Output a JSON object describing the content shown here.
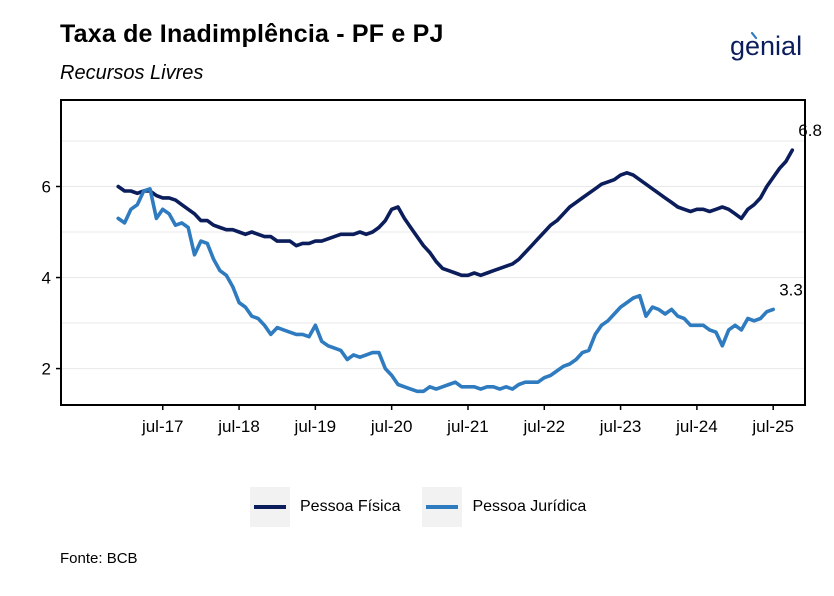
{
  "header": {
    "title": "Taxa de Inadimplência - PF e PJ",
    "subtitle": "Recursos Livres",
    "logo_text": "genial"
  },
  "footer": {
    "source": "Fonte: BCB"
  },
  "colors": {
    "pf": "#0b1e5b",
    "pj": "#2f7bbf",
    "grid": "#e8e8e8",
    "axis": "#000000"
  },
  "chart_data": {
    "type": "line",
    "title": "Taxa de Inadimplência - PF e PJ",
    "subtitle": "Recursos Livres",
    "xlabel": "",
    "ylabel": "",
    "x_ticks": [
      "jul-17",
      "jul-18",
      "jul-19",
      "jul-20",
      "jul-21",
      "jul-22",
      "jul-23",
      "jul-24",
      "jul-25"
    ],
    "y_ticks": [
      2,
      4,
      6
    ],
    "xlim": [
      "2016-03",
      "2025-12"
    ],
    "ylim": [
      1.2,
      7.9
    ],
    "grid": true,
    "legend_position": "bottom",
    "series": [
      {
        "name": "Pessoa Física",
        "end_label": "6.8",
        "points": [
          [
            "2016-12",
            6.0
          ],
          [
            "2017-01",
            5.9
          ],
          [
            "2017-02",
            5.9
          ],
          [
            "2017-03",
            5.85
          ],
          [
            "2017-04",
            5.9
          ],
          [
            "2017-05",
            5.9
          ],
          [
            "2017-06",
            5.8
          ],
          [
            "2017-07",
            5.75
          ],
          [
            "2017-08",
            5.75
          ],
          [
            "2017-09",
            5.7
          ],
          [
            "2017-10",
            5.6
          ],
          [
            "2017-11",
            5.5
          ],
          [
            "2017-12",
            5.4
          ],
          [
            "2018-01",
            5.25
          ],
          [
            "2018-02",
            5.25
          ],
          [
            "2018-03",
            5.15
          ],
          [
            "2018-04",
            5.1
          ],
          [
            "2018-05",
            5.05
          ],
          [
            "2018-06",
            5.05
          ],
          [
            "2018-07",
            5.0
          ],
          [
            "2018-08",
            4.95
          ],
          [
            "2018-09",
            5.0
          ],
          [
            "2018-10",
            4.95
          ],
          [
            "2018-11",
            4.9
          ],
          [
            "2018-12",
            4.9
          ],
          [
            "2019-01",
            4.8
          ],
          [
            "2019-02",
            4.8
          ],
          [
            "2019-03",
            4.8
          ],
          [
            "2019-04",
            4.7
          ],
          [
            "2019-05",
            4.75
          ],
          [
            "2019-06",
            4.75
          ],
          [
            "2019-07",
            4.8
          ],
          [
            "2019-08",
            4.8
          ],
          [
            "2019-09",
            4.85
          ],
          [
            "2019-10",
            4.9
          ],
          [
            "2019-11",
            4.95
          ],
          [
            "2019-12",
            4.95
          ],
          [
            "2020-01",
            4.95
          ],
          [
            "2020-02",
            5.0
          ],
          [
            "2020-03",
            4.95
          ],
          [
            "2020-04",
            5.0
          ],
          [
            "2020-05",
            5.1
          ],
          [
            "2020-06",
            5.25
          ],
          [
            "2020-07",
            5.5
          ],
          [
            "2020-08",
            5.55
          ],
          [
            "2020-09",
            5.3
          ],
          [
            "2020-10",
            5.1
          ],
          [
            "2020-11",
            4.9
          ],
          [
            "2020-12",
            4.7
          ],
          [
            "2021-01",
            4.55
          ],
          [
            "2021-02",
            4.35
          ],
          [
            "2021-03",
            4.2
          ],
          [
            "2021-04",
            4.15
          ],
          [
            "2021-05",
            4.1
          ],
          [
            "2021-06",
            4.05
          ],
          [
            "2021-07",
            4.05
          ],
          [
            "2021-08",
            4.1
          ],
          [
            "2021-09",
            4.05
          ],
          [
            "2021-10",
            4.1
          ],
          [
            "2021-11",
            4.15
          ],
          [
            "2021-12",
            4.2
          ],
          [
            "2022-01",
            4.25
          ],
          [
            "2022-02",
            4.3
          ],
          [
            "2022-03",
            4.4
          ],
          [
            "2022-04",
            4.55
          ],
          [
            "2022-05",
            4.7
          ],
          [
            "2022-06",
            4.85
          ],
          [
            "2022-07",
            5.0
          ],
          [
            "2022-08",
            5.15
          ],
          [
            "2022-09",
            5.25
          ],
          [
            "2022-10",
            5.4
          ],
          [
            "2022-11",
            5.55
          ],
          [
            "2022-12",
            5.65
          ],
          [
            "2023-01",
            5.75
          ],
          [
            "2023-02",
            5.85
          ],
          [
            "2023-03",
            5.95
          ],
          [
            "2023-04",
            6.05
          ],
          [
            "2023-05",
            6.1
          ],
          [
            "2023-06",
            6.15
          ],
          [
            "2023-07",
            6.25
          ],
          [
            "2023-08",
            6.3
          ],
          [
            "2023-09",
            6.25
          ],
          [
            "2023-10",
            6.15
          ],
          [
            "2023-11",
            6.05
          ],
          [
            "2023-12",
            5.95
          ],
          [
            "2024-01",
            5.85
          ],
          [
            "2024-02",
            5.75
          ],
          [
            "2024-03",
            5.65
          ],
          [
            "2024-04",
            5.55
          ],
          [
            "2024-05",
            5.5
          ],
          [
            "2024-06",
            5.45
          ],
          [
            "2024-07",
            5.5
          ],
          [
            "2024-08",
            5.5
          ],
          [
            "2024-09",
            5.45
          ],
          [
            "2024-10",
            5.5
          ],
          [
            "2024-11",
            5.55
          ],
          [
            "2024-12",
            5.5
          ],
          [
            "2025-01",
            5.4
          ],
          [
            "2025-02",
            5.3
          ],
          [
            "2025-03",
            5.5
          ],
          [
            "2025-04",
            5.6
          ],
          [
            "2025-05",
            5.75
          ],
          [
            "2025-06",
            6.0
          ],
          [
            "2025-07",
            6.2
          ],
          [
            "2025-08",
            6.4
          ],
          [
            "2025-09",
            6.55
          ],
          [
            "2025-10",
            6.8
          ]
        ]
      },
      {
        "name": "Pessoa Jurídica",
        "end_label": "3.3",
        "points": [
          [
            "2016-12",
            5.3
          ],
          [
            "2017-01",
            5.2
          ],
          [
            "2017-02",
            5.5
          ],
          [
            "2017-03",
            5.6
          ],
          [
            "2017-04",
            5.9
          ],
          [
            "2017-05",
            5.95
          ],
          [
            "2017-06",
            5.3
          ],
          [
            "2017-07",
            5.5
          ],
          [
            "2017-08",
            5.4
          ],
          [
            "2017-09",
            5.15
          ],
          [
            "2017-10",
            5.2
          ],
          [
            "2017-11",
            5.1
          ],
          [
            "2017-12",
            4.5
          ],
          [
            "2018-01",
            4.8
          ],
          [
            "2018-02",
            4.75
          ],
          [
            "2018-03",
            4.4
          ],
          [
            "2018-04",
            4.15
          ],
          [
            "2018-05",
            4.05
          ],
          [
            "2018-06",
            3.8
          ],
          [
            "2018-07",
            3.45
          ],
          [
            "2018-08",
            3.35
          ],
          [
            "2018-09",
            3.15
          ],
          [
            "2018-10",
            3.1
          ],
          [
            "2018-11",
            2.95
          ],
          [
            "2018-12",
            2.75
          ],
          [
            "2019-01",
            2.9
          ],
          [
            "2019-02",
            2.85
          ],
          [
            "2019-03",
            2.8
          ],
          [
            "2019-04",
            2.75
          ],
          [
            "2019-05",
            2.75
          ],
          [
            "2019-06",
            2.7
          ],
          [
            "2019-07",
            2.95
          ],
          [
            "2019-08",
            2.6
          ],
          [
            "2019-09",
            2.5
          ],
          [
            "2019-10",
            2.45
          ],
          [
            "2019-11",
            2.4
          ],
          [
            "2019-12",
            2.2
          ],
          [
            "2020-01",
            2.3
          ],
          [
            "2020-02",
            2.25
          ],
          [
            "2020-03",
            2.3
          ],
          [
            "2020-04",
            2.35
          ],
          [
            "2020-05",
            2.35
          ],
          [
            "2020-06",
            2.0
          ],
          [
            "2020-07",
            1.85
          ],
          [
            "2020-08",
            1.65
          ],
          [
            "2020-09",
            1.6
          ],
          [
            "2020-10",
            1.55
          ],
          [
            "2020-11",
            1.5
          ],
          [
            "2020-12",
            1.5
          ],
          [
            "2021-01",
            1.6
          ],
          [
            "2021-02",
            1.55
          ],
          [
            "2021-03",
            1.6
          ],
          [
            "2021-04",
            1.65
          ],
          [
            "2021-05",
            1.7
          ],
          [
            "2021-06",
            1.6
          ],
          [
            "2021-07",
            1.6
          ],
          [
            "2021-08",
            1.6
          ],
          [
            "2021-09",
            1.55
          ],
          [
            "2021-10",
            1.6
          ],
          [
            "2021-11",
            1.6
          ],
          [
            "2021-12",
            1.55
          ],
          [
            "2022-01",
            1.6
          ],
          [
            "2022-02",
            1.55
          ],
          [
            "2022-03",
            1.65
          ],
          [
            "2022-04",
            1.7
          ],
          [
            "2022-05",
            1.7
          ],
          [
            "2022-06",
            1.7
          ],
          [
            "2022-07",
            1.8
          ],
          [
            "2022-08",
            1.85
          ],
          [
            "2022-09",
            1.95
          ],
          [
            "2022-10",
            2.05
          ],
          [
            "2022-11",
            2.1
          ],
          [
            "2022-12",
            2.2
          ],
          [
            "2023-01",
            2.35
          ],
          [
            "2023-02",
            2.4
          ],
          [
            "2023-03",
            2.75
          ],
          [
            "2023-04",
            2.95
          ],
          [
            "2023-05",
            3.05
          ],
          [
            "2023-06",
            3.2
          ],
          [
            "2023-07",
            3.35
          ],
          [
            "2023-08",
            3.45
          ],
          [
            "2023-09",
            3.55
          ],
          [
            "2023-10",
            3.6
          ],
          [
            "2023-11",
            3.15
          ],
          [
            "2023-12",
            3.35
          ],
          [
            "2024-01",
            3.3
          ],
          [
            "2024-02",
            3.2
          ],
          [
            "2024-03",
            3.3
          ],
          [
            "2024-04",
            3.15
          ],
          [
            "2024-05",
            3.1
          ],
          [
            "2024-06",
            2.95
          ],
          [
            "2024-07",
            2.95
          ],
          [
            "2024-08",
            2.95
          ],
          [
            "2024-09",
            2.85
          ],
          [
            "2024-10",
            2.8
          ],
          [
            "2024-11",
            2.5
          ],
          [
            "2024-12",
            2.85
          ],
          [
            "2025-01",
            2.95
          ],
          [
            "2025-02",
            2.85
          ],
          [
            "2025-03",
            3.1
          ],
          [
            "2025-04",
            3.05
          ],
          [
            "2025-05",
            3.1
          ],
          [
            "2025-06",
            3.25
          ],
          [
            "2025-07",
            3.3
          ]
        ]
      }
    ]
  }
}
